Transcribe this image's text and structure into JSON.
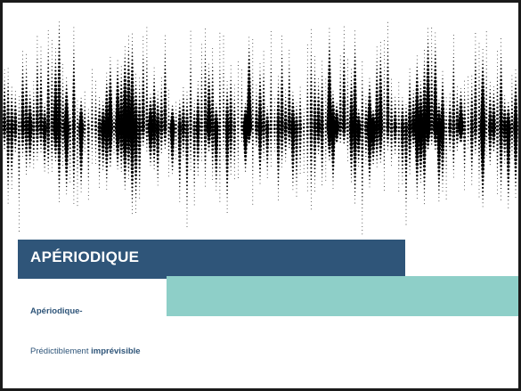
{
  "slide": {
    "title": "APÉRIODIQUE",
    "subtitle": "Apériodique-",
    "body_prefix": "Prédictiblement ",
    "body_emphasis": "imprévisible"
  },
  "colors": {
    "title_bar": "#2f5579",
    "accent_bar": "#8ecfc8",
    "text": "#2f5579",
    "dots": "#000000"
  },
  "decoration": {
    "pattern": "dotted-waveform"
  }
}
